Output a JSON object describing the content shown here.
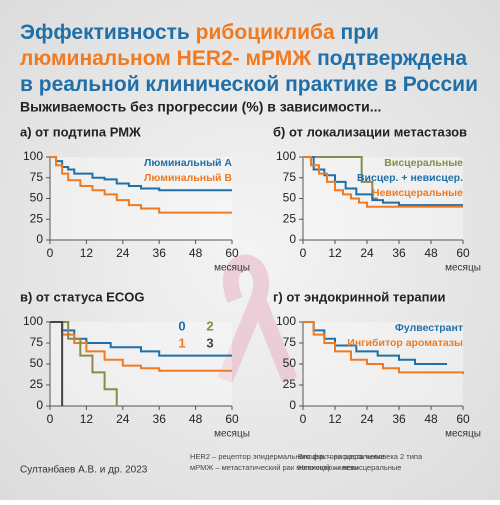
{
  "header": {
    "title_lines": [
      [
        {
          "text": "Эффективность ",
          "color": "#1f6fa8"
        },
        {
          "text": "рибоциклиба",
          "color": "#f07a22"
        },
        {
          "text": " при",
          "color": "#1f6fa8"
        }
      ],
      [
        {
          "text": "люминальном HER2- мРМЖ",
          "color": "#f07a22"
        },
        {
          "text": " подтверждена",
          "color": "#1f6fa8"
        }
      ],
      [
        {
          "text": "в реальной клинической практике в России",
          "color": "#1f6fa8"
        }
      ]
    ],
    "subtitle": "Выживаемость без прогрессии (%) в зависимости..."
  },
  "chart_data": [
    {
      "type": "step",
      "title": "а) от подтипа РМЖ",
      "x_label": "месяцы",
      "xlim": [
        0,
        60
      ],
      "xticks": [
        0,
        12,
        24,
        36,
        48,
        60
      ],
      "ylim": [
        0,
        100
      ],
      "yticks": [
        0,
        25,
        50,
        75,
        100
      ],
      "legend_columns": 1,
      "series": [
        {
          "name": "Люминальный А",
          "color": "#1f6fa8",
          "x": [
            0,
            2,
            4,
            6,
            8,
            14,
            18,
            22,
            26,
            30,
            36,
            60
          ],
          "values": [
            100,
            95,
            88,
            85,
            80,
            75,
            73,
            68,
            65,
            62,
            60,
            60
          ]
        },
        {
          "name": "Люминальный В",
          "color": "#f07a22",
          "x": [
            0,
            2,
            4,
            6,
            10,
            14,
            18,
            22,
            26,
            30,
            36,
            60
          ],
          "values": [
            100,
            90,
            80,
            72,
            65,
            60,
            55,
            48,
            42,
            38,
            33,
            33
          ]
        }
      ]
    },
    {
      "type": "step",
      "title": "б) от локализации метастазов",
      "x_label": "месяцы",
      "xlim": [
        0,
        60
      ],
      "xticks": [
        0,
        12,
        24,
        36,
        48,
        60
      ],
      "ylim": [
        0,
        100
      ],
      "yticks": [
        0,
        25,
        50,
        75,
        100
      ],
      "legend_columns": 1,
      "series": [
        {
          "name": "Висцеральные",
          "color": "#8a8a4a",
          "x": [
            0,
            22,
            26,
            28
          ],
          "values": [
            100,
            70,
            50,
            50
          ]
        },
        {
          "name": "Висцер. + невисцер.",
          "color": "#1f6fa8",
          "x": [
            0,
            4,
            8,
            12,
            16,
            20,
            26,
            30,
            36,
            60
          ],
          "values": [
            100,
            85,
            78,
            70,
            62,
            55,
            48,
            45,
            42,
            42
          ]
        },
        {
          "name": "Невисцеральные",
          "color": "#f07a22",
          "x": [
            0,
            3,
            6,
            9,
            12,
            15,
            18,
            21,
            24,
            60
          ],
          "values": [
            100,
            90,
            80,
            70,
            60,
            55,
            50,
            45,
            40,
            40
          ]
        }
      ]
    },
    {
      "type": "step",
      "title": "в) от статуса ECOG",
      "x_label": "месяцы",
      "xlim": [
        0,
        60
      ],
      "xticks": [
        0,
        12,
        24,
        36,
        48,
        60
      ],
      "ylim": [
        0,
        100
      ],
      "yticks": [
        0,
        25,
        50,
        75,
        100
      ],
      "legend_columns": 2,
      "series": [
        {
          "name": "0",
          "color": "#1f6fa8",
          "x": [
            0,
            4,
            8,
            12,
            20,
            30,
            36,
            60
          ],
          "values": [
            100,
            90,
            80,
            75,
            70,
            65,
            60,
            60
          ]
        },
        {
          "name": "1",
          "color": "#f07a22",
          "x": [
            0,
            4,
            8,
            12,
            18,
            24,
            30,
            36,
            60
          ],
          "values": [
            100,
            85,
            75,
            65,
            55,
            48,
            45,
            42,
            42
          ]
        },
        {
          "name": "2",
          "color": "#8a8a4a",
          "x": [
            0,
            6,
            10,
            14,
            18,
            22
          ],
          "values": [
            100,
            80,
            60,
            40,
            20,
            0
          ]
        },
        {
          "name": "3",
          "color": "#444444",
          "x": [
            0,
            4
          ],
          "values": [
            100,
            0
          ]
        }
      ]
    },
    {
      "type": "step",
      "title": "г) от эндокринной терапии",
      "x_label": "месяцы",
      "xlim": [
        0,
        60
      ],
      "xticks": [
        0,
        12,
        24,
        36,
        48,
        60
      ],
      "ylim": [
        0,
        100
      ],
      "yticks": [
        0,
        25,
        50,
        75,
        100
      ],
      "legend_columns": 1,
      "series": [
        {
          "name": "Фулвестрант",
          "color": "#1f6fa8",
          "x": [
            0,
            4,
            8,
            12,
            20,
            28,
            36,
            42,
            54
          ],
          "values": [
            100,
            90,
            80,
            72,
            65,
            60,
            55,
            50,
            50
          ]
        },
        {
          "name": "Ингибитор ароматазы",
          "color": "#f07a22",
          "x": [
            0,
            4,
            8,
            12,
            18,
            24,
            30,
            36,
            60
          ],
          "values": [
            100,
            85,
            75,
            65,
            55,
            50,
            45,
            40,
            38
          ]
        }
      ]
    }
  ],
  "footnotes": [
    "HER2 – рецептор эпидермального фактора роста человека 2 типа",
    "мРМЖ – метастатический рак молочной железы",
    "Висцер. – висцеральные",
    "Невисцер. – невисцеральные"
  ],
  "citation": "Султанбаев А.В. и др. 2023"
}
